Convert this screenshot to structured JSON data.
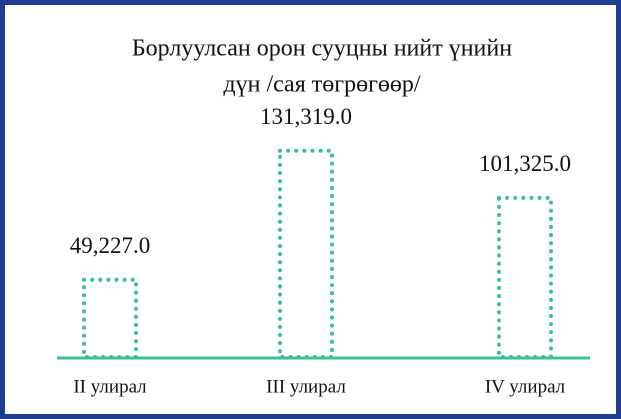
{
  "chart_data": {
    "type": "bar",
    "title": [
      "Борлуулсан орон сууцны нийт үнийн",
      "дүн /сая төгрөгөөр/"
    ],
    "categories": [
      "II улирал",
      "III улирал",
      "IV улирал"
    ],
    "values": [
      49227.0,
      131319.0,
      101325.0
    ],
    "value_labels": [
      "49,227.0",
      "131,319.0",
      "101,325.0"
    ],
    "color": "#3dbf96",
    "ylim": [
      0,
      135000
    ]
  }
}
